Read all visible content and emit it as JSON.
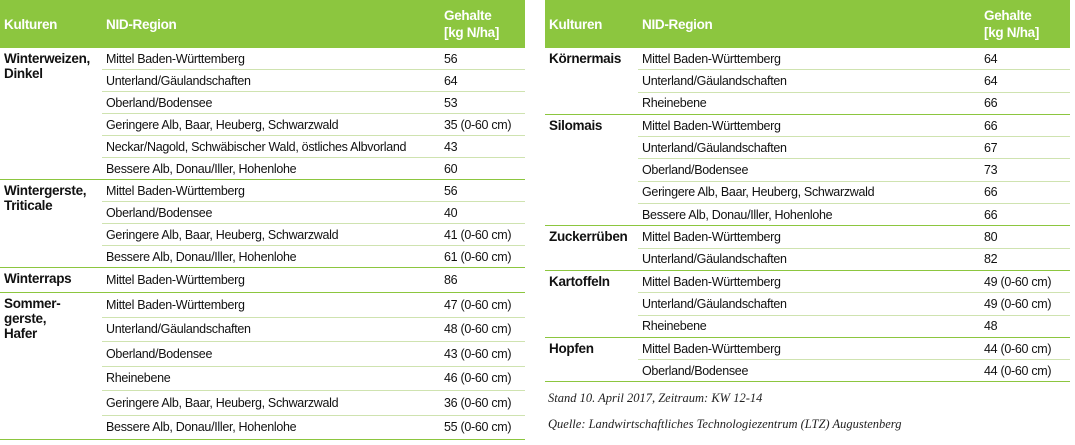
{
  "left": {
    "header": [
      "Kulturen",
      "NID-Region",
      "Gehalte\n[kg N/ha]"
    ],
    "groups": [
      {
        "culture": "Winterweizen,\nDinkel",
        "rows": [
          {
            "region": "Mittel Baden-Württemberg",
            "value": "56"
          },
          {
            "region": "Unterland/Gäulandschaften",
            "value": "64"
          },
          {
            "region": "Oberland/Bodensee",
            "value": "53"
          },
          {
            "region": "Geringere Alb, Baar, Heuberg, Schwarzwald",
            "value": "35 (0-60 cm)"
          },
          {
            "region": "Neckar/Nagold, Schwäbischer Wald, östliches Albvorland",
            "value": "43"
          },
          {
            "region": "Bessere Alb, Donau/Iller, Hohenlohe",
            "value": "60"
          }
        ]
      },
      {
        "culture": "Wintergerste,\nTriticale",
        "rows": [
          {
            "region": "Mittel Baden-Württemberg",
            "value": "56"
          },
          {
            "region": "Oberland/Bodensee",
            "value": "40"
          },
          {
            "region": "Geringere Alb, Baar, Heuberg, Schwarzwald",
            "value": "41 (0-60 cm)"
          },
          {
            "region": "Bessere Alb, Donau/Iller, Hohenlohe",
            "value": "61 (0-60 cm)"
          }
        ]
      },
      {
        "culture": "Winterraps",
        "rows": [
          {
            "region": "Mittel Baden-Württemberg",
            "value": "86"
          }
        ]
      },
      {
        "culture": "Sommer-\ngerste,\nHafer",
        "rows": [
          {
            "region": "Mittel Baden-Württemberg",
            "value": "47 (0-60 cm)"
          },
          {
            "region": "Unterland/Gäulandschaften",
            "value": "48 (0-60 cm)"
          },
          {
            "region": "Oberland/Bodensee",
            "value": "43 (0-60 cm)"
          },
          {
            "region": "Rheinebene",
            "value": "46 (0-60 cm)"
          },
          {
            "region": "Geringere Alb, Baar, Heuberg, Schwarzwald",
            "value": "36 (0-60 cm)"
          },
          {
            "region": "Bessere Alb, Donau/Iller, Hohenlohe",
            "value": "55 (0-60 cm)"
          }
        ]
      }
    ]
  },
  "right": {
    "header": [
      "Kulturen",
      "NID-Region",
      "Gehalte\n[kg N/ha]"
    ],
    "groups": [
      {
        "culture": "Körnermais",
        "rows": [
          {
            "region": "Mittel Baden-Württemberg",
            "value": "64"
          },
          {
            "region": "Unterland/Gäulandschaften",
            "value": "64"
          },
          {
            "region": "Rheinebene",
            "value": "66"
          }
        ]
      },
      {
        "culture": "Silomais",
        "rows": [
          {
            "region": "Mittel Baden-Württemberg",
            "value": "66"
          },
          {
            "region": "Unterland/Gäulandschaften",
            "value": "67"
          },
          {
            "region": "Oberland/Bodensee",
            "value": "73"
          },
          {
            "region": "Geringere Alb, Baar, Heuberg, Schwarzwald",
            "value": "66"
          },
          {
            "region": "Bessere Alb, Donau/Iller, Hohenlohe",
            "value": "66"
          }
        ]
      },
      {
        "culture": "Zuckerrüben",
        "rows": [
          {
            "region": "Mittel Baden-Württemberg",
            "value": "80"
          },
          {
            "region": "Unterland/Gäulandschaften",
            "value": "82"
          }
        ]
      },
      {
        "culture": "Kartoffeln",
        "rows": [
          {
            "region": "Mittel Baden-Württemberg",
            "value": "49 (0-60 cm)"
          },
          {
            "region": "Unterland/Gäulandschaften",
            "value": "49 (0-60 cm)"
          },
          {
            "region": "Rheinebene",
            "value": "48"
          }
        ]
      },
      {
        "culture": "Hopfen",
        "rows": [
          {
            "region": "Mittel Baden-Württemberg",
            "value": "44 (0-60 cm)"
          },
          {
            "region": "Oberland/Bodensee",
            "value": "44 (0-60 cm)"
          }
        ]
      }
    ]
  },
  "notes": [
    "Stand 10. April 2017, Zeitraum: KW 12-14",
    "Quelle: Landwirtschaftliches Technologiezentrum (LTZ) Augustenberg"
  ]
}
